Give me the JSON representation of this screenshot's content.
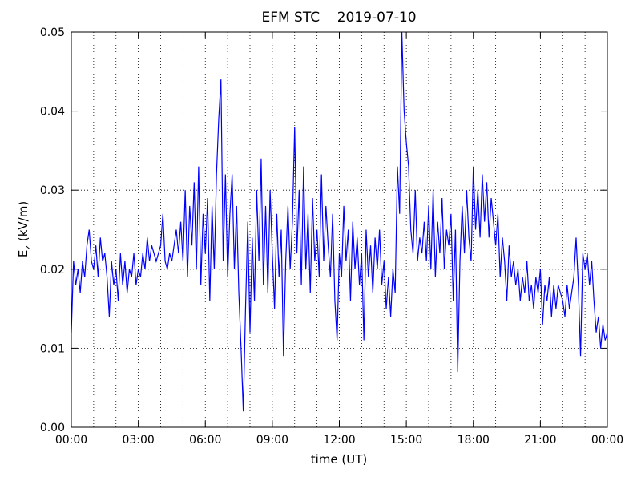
{
  "chart_data": {
    "type": "line",
    "title": "EFM STC    2019-07-10",
    "xlabel": "time (UT)",
    "ylabel": {
      "main": "E",
      "sub": "z",
      "rest": " (kV/m)"
    },
    "color": "#0000ff",
    "grid": true,
    "xlim": [
      0,
      24
    ],
    "ylim": [
      0,
      0.05
    ],
    "xticks": [
      {
        "value": 0,
        "label": "00:00"
      },
      {
        "value": 3,
        "label": "03:00"
      },
      {
        "value": 6,
        "label": "06:00"
      },
      {
        "value": 9,
        "label": "09:00"
      },
      {
        "value": 12,
        "label": "12:00"
      },
      {
        "value": 15,
        "label": "15:00"
      },
      {
        "value": 18,
        "label": "18:00"
      },
      {
        "value": 21,
        "label": "21:00"
      },
      {
        "value": 24,
        "label": "00:00"
      }
    ],
    "xminorticks": [
      1,
      2,
      4,
      5,
      7,
      8,
      10,
      11,
      13,
      14,
      16,
      17,
      19,
      20,
      22,
      23
    ],
    "yticks": [
      {
        "value": 0,
        "label": "0.00"
      },
      0.01,
      0.02,
      0.03,
      0.04,
      0.05
    ],
    "x": [
      0,
      0.1,
      0.2,
      0.3,
      0.4,
      0.5,
      0.6,
      0.7,
      0.8,
      0.9,
      1,
      1.1,
      1.2,
      1.3,
      1.4,
      1.5,
      1.6,
      1.7,
      1.8,
      1.9,
      2,
      2.1,
      2.2,
      2.3,
      2.4,
      2.5,
      2.6,
      2.7,
      2.8,
      2.9,
      3,
      3.1,
      3.2,
      3.3,
      3.4,
      3.5,
      3.6,
      3.7,
      3.8,
      3.9,
      4,
      4.1,
      4.2,
      4.3,
      4.4,
      4.5,
      4.6,
      4.7,
      4.8,
      4.9,
      5,
      5.1,
      5.2,
      5.3,
      5.4,
      5.5,
      5.6,
      5.7,
      5.8,
      5.9,
      6,
      6.1,
      6.2,
      6.3,
      6.4,
      6.5,
      6.6,
      6.7,
      6.8,
      6.9,
      7,
      7.1,
      7.2,
      7.3,
      7.4,
      7.5,
      7.6,
      7.7,
      7.8,
      7.9,
      8,
      8.1,
      8.2,
      8.3,
      8.4,
      8.5,
      8.6,
      8.7,
      8.8,
      8.9,
      9,
      9.1,
      9.2,
      9.3,
      9.4,
      9.5,
      9.6,
      9.7,
      9.8,
      9.9,
      10,
      10.1,
      10.2,
      10.3,
      10.4,
      10.5,
      10.6,
      10.7,
      10.8,
      10.9,
      11,
      11.1,
      11.2,
      11.3,
      11.4,
      11.5,
      11.6,
      11.7,
      11.8,
      11.9,
      12,
      12.1,
      12.2,
      12.3,
      12.4,
      12.5,
      12.6,
      12.7,
      12.8,
      12.9,
      13,
      13.1,
      13.2,
      13.3,
      13.4,
      13.5,
      13.6,
      13.7,
      13.8,
      13.9,
      14,
      14.1,
      14.2,
      14.3,
      14.4,
      14.5,
      14.6,
      14.7,
      14.8,
      14.9,
      15,
      15.1,
      15.2,
      15.3,
      15.4,
      15.5,
      15.6,
      15.7,
      15.8,
      15.9,
      16,
      16.1,
      16.2,
      16.3,
      16.4,
      16.5,
      16.6,
      16.7,
      16.8,
      16.9,
      17,
      17.1,
      17.2,
      17.3,
      17.4,
      17.5,
      17.6,
      17.7,
      17.8,
      17.9,
      18,
      18.1,
      18.2,
      18.3,
      18.4,
      18.5,
      18.6,
      18.7,
      18.8,
      18.9,
      19,
      19.1,
      19.2,
      19.3,
      19.4,
      19.5,
      19.6,
      19.7,
      19.8,
      19.9,
      20,
      20.1,
      20.2,
      20.3,
      20.4,
      20.5,
      20.6,
      20.7,
      20.8,
      20.9,
      21,
      21.1,
      21.2,
      21.3,
      21.4,
      21.5,
      21.6,
      21.7,
      21.8,
      21.9,
      22,
      22.1,
      22.2,
      22.3,
      22.4,
      22.5,
      22.6,
      22.7,
      22.8,
      22.9,
      23,
      23.1,
      23.2,
      23.3,
      23.4,
      23.5,
      23.6,
      23.7,
      23.8,
      23.9,
      24
    ],
    "values": [
      0.012,
      0.021,
      0.018,
      0.02,
      0.017,
      0.021,
      0.019,
      0.023,
      0.025,
      0.021,
      0.02,
      0.023,
      0.019,
      0.024,
      0.021,
      0.022,
      0.019,
      0.014,
      0.021,
      0.018,
      0.02,
      0.016,
      0.022,
      0.018,
      0.021,
      0.017,
      0.02,
      0.019,
      0.022,
      0.018,
      0.02,
      0.019,
      0.022,
      0.02,
      0.024,
      0.021,
      0.023,
      0.022,
      0.021,
      0.022,
      0.023,
      0.027,
      0.021,
      0.02,
      0.022,
      0.021,
      0.023,
      0.025,
      0.022,
      0.026,
      0.021,
      0.03,
      0.019,
      0.028,
      0.023,
      0.031,
      0.02,
      0.033,
      0.018,
      0.027,
      0.022,
      0.029,
      0.016,
      0.028,
      0.02,
      0.032,
      0.039,
      0.044,
      0.021,
      0.032,
      0.019,
      0.027,
      0.032,
      0.02,
      0.028,
      0.017,
      0.01,
      0.002,
      0.015,
      0.026,
      0.012,
      0.024,
      0.016,
      0.03,
      0.021,
      0.034,
      0.018,
      0.028,
      0.017,
      0.03,
      0.022,
      0.015,
      0.027,
      0.019,
      0.025,
      0.009,
      0.021,
      0.028,
      0.02,
      0.026,
      0.038,
      0.022,
      0.03,
      0.018,
      0.033,
      0.02,
      0.027,
      0.017,
      0.029,
      0.021,
      0.025,
      0.019,
      0.032,
      0.021,
      0.028,
      0.023,
      0.019,
      0.027,
      0.016,
      0.011,
      0.022,
      0.019,
      0.028,
      0.021,
      0.025,
      0.016,
      0.026,
      0.02,
      0.024,
      0.018,
      0.022,
      0.011,
      0.025,
      0.019,
      0.023,
      0.017,
      0.024,
      0.02,
      0.025,
      0.018,
      0.021,
      0.015,
      0.019,
      0.014,
      0.02,
      0.017,
      0.033,
      0.027,
      0.05,
      0.04,
      0.036,
      0.033,
      0.025,
      0.022,
      0.03,
      0.021,
      0.024,
      0.022,
      0.026,
      0.021,
      0.028,
      0.02,
      0.03,
      0.019,
      0.026,
      0.022,
      0.029,
      0.02,
      0.025,
      0.023,
      0.027,
      0.016,
      0.025,
      0.007,
      0.021,
      0.028,
      0.022,
      0.03,
      0.024,
      0.021,
      0.033,
      0.025,
      0.03,
      0.024,
      0.032,
      0.026,
      0.031,
      0.024,
      0.029,
      0.026,
      0.023,
      0.027,
      0.019,
      0.024,
      0.021,
      0.016,
      0.023,
      0.019,
      0.021,
      0.018,
      0.02,
      0.016,
      0.019,
      0.017,
      0.021,
      0.016,
      0.018,
      0.015,
      0.019,
      0.017,
      0.02,
      0.013,
      0.018,
      0.016,
      0.019,
      0.014,
      0.018,
      0.015,
      0.018,
      0.017,
      0.016,
      0.014,
      0.018,
      0.015,
      0.017,
      0.019,
      0.024,
      0.018,
      0.009,
      0.022,
      0.02,
      0.022,
      0.018,
      0.021,
      0.016,
      0.012,
      0.014,
      0.01,
      0.013,
      0.011,
      0.012
    ]
  }
}
